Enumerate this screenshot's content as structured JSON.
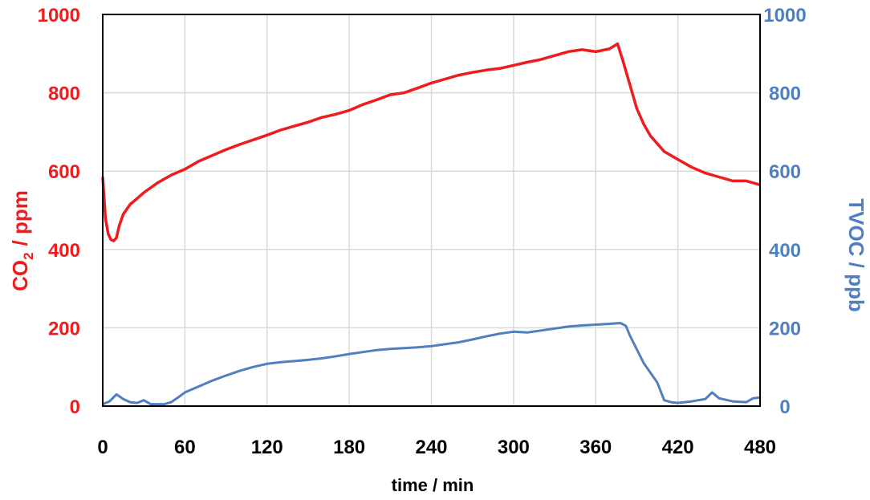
{
  "chart_data": {
    "type": "line",
    "xlabel": "time / min",
    "ylabel_left": "CO₂ / ppm",
    "ylabel_left_main": "CO",
    "ylabel_left_sub": "2",
    "ylabel_left_unit": "/ ppm",
    "ylabel_right": "TVOC / ppb",
    "xlim": [
      0,
      480
    ],
    "ylim_left": [
      0,
      1000
    ],
    "ylim_right": [
      0,
      1000
    ],
    "grid": true,
    "x_ticks": [
      "0",
      "60",
      "120",
      "180",
      "240",
      "300",
      "360",
      "420",
      "480"
    ],
    "y_ticks_left": [
      "0",
      "200",
      "400",
      "600",
      "800",
      "1000"
    ],
    "y_ticks_right": [
      "0",
      "200",
      "400",
      "600",
      "800",
      "1000"
    ],
    "colors": {
      "co2": "#ee1c1c",
      "tvoc": "#4f7fbf",
      "grid": "#d9d9d9",
      "axis": "#000000"
    },
    "series": [
      {
        "name": "CO2",
        "axis": "left",
        "color": "#ee1c1c",
        "x": [
          0,
          2,
          4,
          6,
          8,
          10,
          12,
          15,
          20,
          25,
          30,
          40,
          50,
          60,
          70,
          80,
          90,
          100,
          110,
          120,
          130,
          140,
          150,
          160,
          170,
          180,
          190,
          200,
          210,
          220,
          230,
          240,
          250,
          260,
          270,
          280,
          290,
          300,
          310,
          320,
          330,
          340,
          350,
          360,
          370,
          376,
          380,
          385,
          390,
          395,
          400,
          410,
          420,
          430,
          440,
          450,
          460,
          470,
          480
        ],
        "values": [
          585,
          480,
          440,
          425,
          422,
          430,
          460,
          490,
          515,
          530,
          545,
          570,
          590,
          605,
          625,
          640,
          655,
          668,
          680,
          692,
          705,
          715,
          725,
          737,
          745,
          755,
          770,
          782,
          795,
          800,
          812,
          825,
          835,
          845,
          852,
          858,
          862,
          870,
          878,
          885,
          895,
          905,
          910,
          905,
          912,
          925,
          880,
          820,
          760,
          720,
          690,
          650,
          630,
          610,
          595,
          585,
          575,
          575,
          565
        ]
      },
      {
        "name": "TVOC",
        "axis": "right",
        "color": "#4f7fbf",
        "x": [
          0,
          5,
          10,
          15,
          20,
          25,
          30,
          35,
          40,
          45,
          50,
          55,
          60,
          70,
          80,
          90,
          100,
          110,
          120,
          130,
          140,
          150,
          160,
          170,
          180,
          190,
          200,
          210,
          220,
          230,
          240,
          250,
          260,
          270,
          280,
          290,
          300,
          310,
          320,
          330,
          340,
          350,
          360,
          370,
          378,
          382,
          385,
          390,
          395,
          400,
          405,
          410,
          415,
          420,
          430,
          440,
          445,
          450,
          460,
          470,
          475,
          480
        ],
        "values": [
          5,
          12,
          30,
          18,
          10,
          8,
          15,
          5,
          5,
          5,
          10,
          22,
          35,
          50,
          65,
          78,
          90,
          100,
          108,
          112,
          115,
          118,
          122,
          127,
          133,
          138,
          143,
          146,
          148,
          150,
          153,
          158,
          163,
          170,
          178,
          185,
          190,
          188,
          193,
          198,
          203,
          206,
          208,
          210,
          212,
          205,
          180,
          145,
          110,
          85,
          60,
          15,
          10,
          8,
          12,
          18,
          35,
          20,
          12,
          10,
          20,
          22
        ]
      }
    ]
  }
}
